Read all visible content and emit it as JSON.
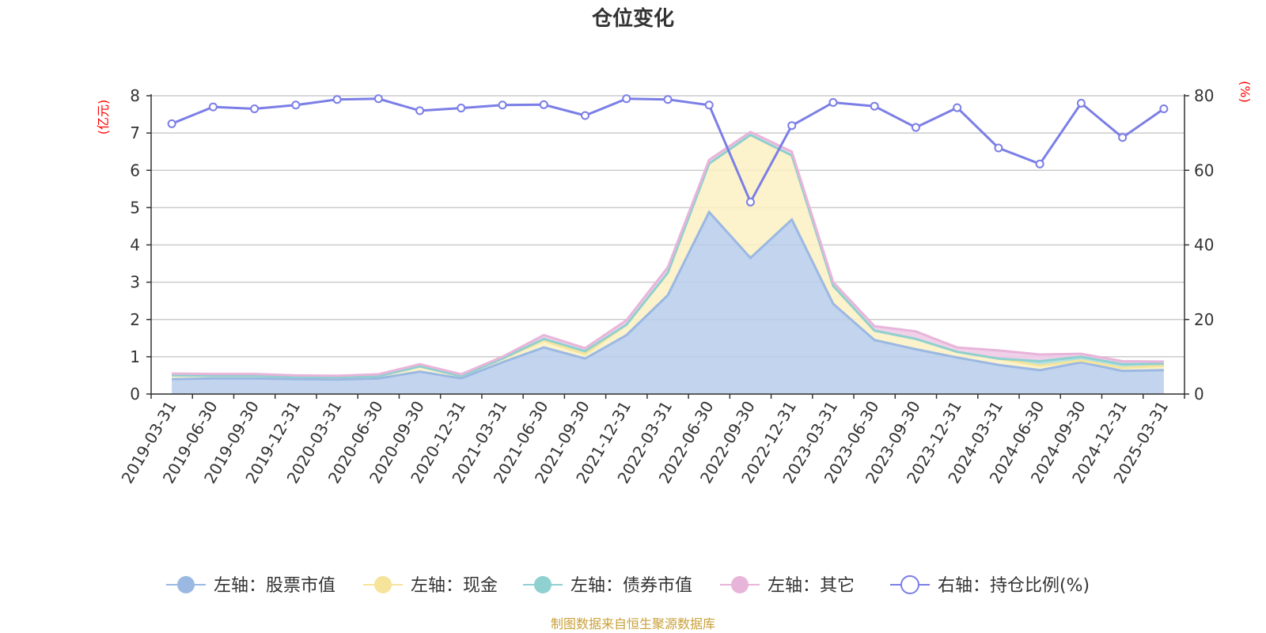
{
  "chart_data": {
    "type": "area",
    "title": "仓位变化",
    "left_axis_unit": "(亿元)",
    "right_axis_unit": "(%)",
    "left_ylim": [
      0,
      8
    ],
    "left_ticks": [
      0,
      1,
      2,
      3,
      4,
      5,
      6,
      7,
      8
    ],
    "right_ylim": [
      0,
      80
    ],
    "right_ticks": [
      0,
      20,
      40,
      60,
      80
    ],
    "stacked": true,
    "grid": true,
    "legend_position": "bottom",
    "categories": [
      "2019-03-31",
      "2019-06-30",
      "2019-09-30",
      "2019-12-31",
      "2020-03-31",
      "2020-06-30",
      "2020-09-30",
      "2020-12-31",
      "2021-03-31",
      "2021-06-30",
      "2021-09-30",
      "2021-12-31",
      "2022-03-31",
      "2022-06-30",
      "2022-09-30",
      "2022-12-31",
      "2023-03-31",
      "2023-06-30",
      "2023-09-30",
      "2023-12-31",
      "2024-03-31",
      "2024-06-30",
      "2024-09-30",
      "2024-12-31",
      "2025-03-31"
    ],
    "series": [
      {
        "name": "左轴：股票市值",
        "axis": "left",
        "color": "#9bb8e3",
        "fill": "#b7cdeb",
        "values": [
          0.4,
          0.42,
          0.42,
          0.4,
          0.39,
          0.42,
          0.6,
          0.42,
          0.85,
          1.25,
          0.95,
          1.58,
          2.65,
          4.88,
          3.65,
          4.68,
          2.42,
          1.45,
          1.2,
          0.98,
          0.78,
          0.64,
          0.85,
          0.62,
          0.64
        ]
      },
      {
        "name": "左轴：现金",
        "axis": "left",
        "color": "#f5e49a",
        "fill": "#fcf0c2",
        "values": [
          0.1,
          0.07,
          0.07,
          0.06,
          0.06,
          0.06,
          0.14,
          0.06,
          0.1,
          0.18,
          0.12,
          0.28,
          0.6,
          1.3,
          3.3,
          1.72,
          0.48,
          0.25,
          0.28,
          0.15,
          0.17,
          0.12,
          0.05,
          0.08,
          0.12
        ]
      },
      {
        "name": "左轴：债券市值",
        "axis": "left",
        "color": "#8fd0d0",
        "fill": "#a8dcdc",
        "values": [
          0.0,
          0.0,
          0.0,
          0.0,
          0.0,
          0.0,
          0.0,
          0.0,
          0.0,
          0.05,
          0.08,
          0.0,
          0.0,
          0.0,
          0.0,
          0.0,
          0.0,
          0.0,
          0.0,
          0.0,
          0.0,
          0.12,
          0.1,
          0.1,
          0.05
        ]
      },
      {
        "name": "左轴：其它",
        "axis": "left",
        "color": "#e8b5da",
        "fill": "#efc8e6",
        "values": [
          0.05,
          0.05,
          0.05,
          0.04,
          0.04,
          0.05,
          0.06,
          0.05,
          0.05,
          0.1,
          0.08,
          0.12,
          0.15,
          0.1,
          0.08,
          0.1,
          0.1,
          0.12,
          0.2,
          0.12,
          0.22,
          0.18,
          0.08,
          0.08,
          0.06
        ]
      },
      {
        "name": "右轴：持仓比例(%)",
        "axis": "right",
        "color": "#7b7ee6",
        "type": "line",
        "values": [
          72.5,
          77.0,
          76.5,
          77.5,
          79.0,
          79.2,
          76.0,
          76.7,
          77.5,
          77.6,
          74.7,
          79.2,
          79.0,
          77.5,
          51.5,
          72.0,
          78.2,
          77.2,
          71.5,
          76.8,
          66.0,
          61.7,
          78.0,
          68.8,
          76.5
        ]
      }
    ],
    "source_note": "制图数据来自恒生聚源数据库"
  }
}
